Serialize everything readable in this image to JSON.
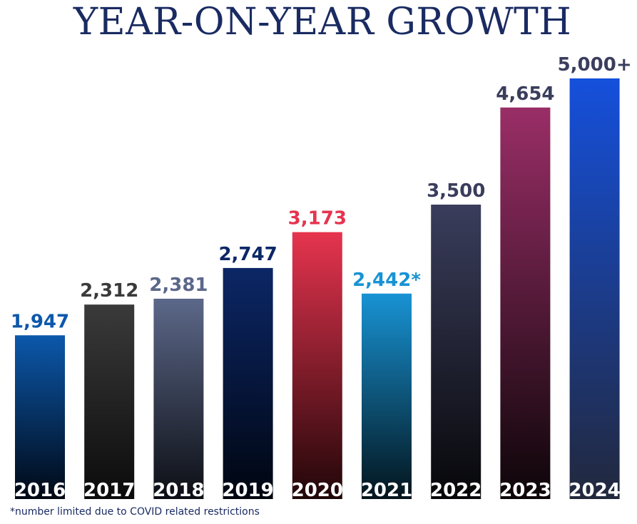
{
  "chart_data": {
    "type": "bar",
    "title": "YEAR-ON-YEAR GROWTH",
    "xlabel": "",
    "ylabel": "",
    "ylim": [
      0,
      5400
    ],
    "categories": [
      "2016",
      "2017",
      "2018",
      "2019",
      "2020",
      "2021",
      "2022",
      "2023",
      "2024"
    ],
    "values": [
      1947,
      2312,
      2381,
      2747,
      3173,
      2442,
      3500,
      4654,
      5000
    ],
    "value_labels": [
      "1,947",
      "2,312",
      "2,381",
      "2,747",
      "3,173",
      "2,442*",
      "3,500",
      "4,654",
      "5,000+"
    ],
    "bar_colors": [
      {
        "top": "#0c58ab",
        "bottom": "#000814",
        "label": "#0c58ab"
      },
      {
        "top": "#3a3a3a",
        "bottom": "#0b0b0b",
        "label": "#3a3a3a"
      },
      {
        "top": "#5c6889",
        "bottom": "#0c0e14",
        "label": "#5c6889"
      },
      {
        "top": "#0c2766",
        "bottom": "#000510",
        "label": "#0c2766"
      },
      {
        "top": "#e6344f",
        "bottom": "#200608",
        "label": "#e6344f"
      },
      {
        "top": "#1893d4",
        "bottom": "#03141c",
        "label": "#1893d4"
      },
      {
        "top": "#3a3d5c",
        "bottom": "#070709",
        "label": "#3a3d5c"
      },
      {
        "top": "#9a2e67",
        "bottom": "#0c0508",
        "label": "#3a3d5c"
      },
      {
        "top": "#1550dc",
        "bottom": "#22283c",
        "label": "#3a3d5c"
      }
    ]
  },
  "footnote": "*number limited due to COVID related restrictions"
}
